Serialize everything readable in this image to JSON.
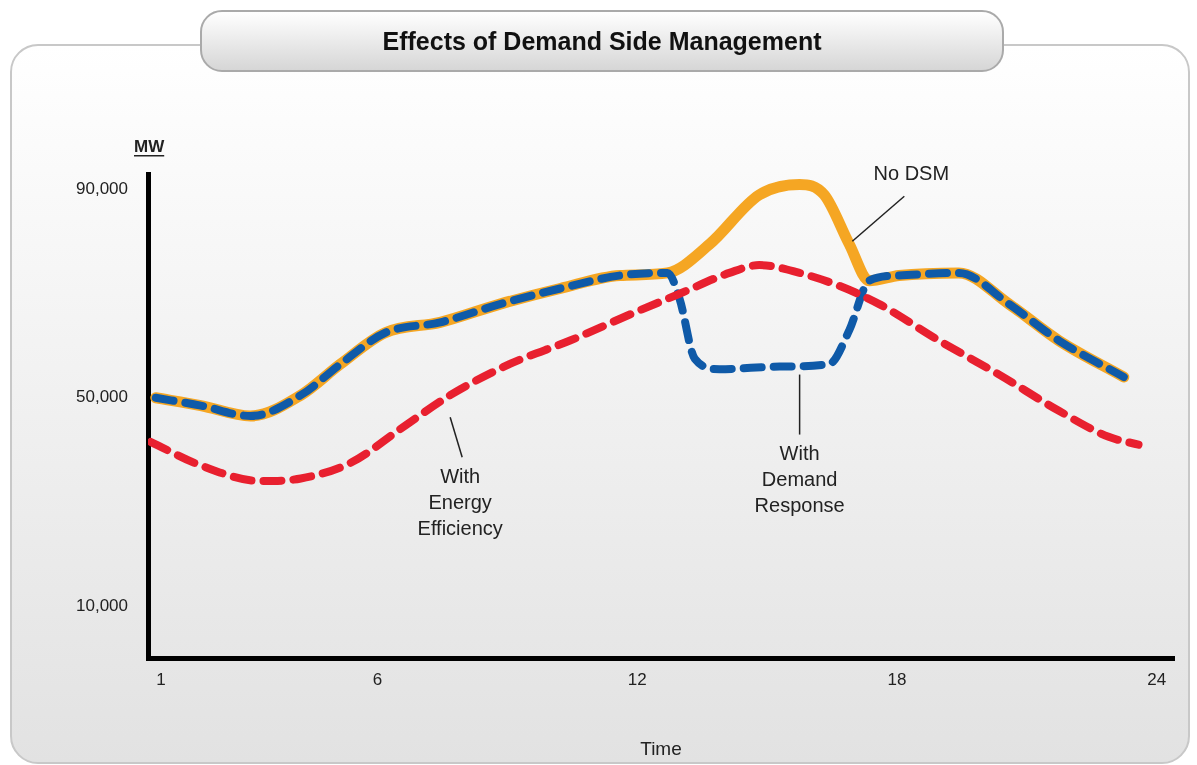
{
  "chart_data": {
    "type": "line",
    "title": "Effects of Demand Side Management",
    "xlabel": "Time",
    "ylabel": "MW",
    "xlim": [
      0.7,
      24.4
    ],
    "xticks": [
      1,
      6,
      12,
      18,
      24
    ],
    "ylim": [
      0,
      93000
    ],
    "yticks": [
      {
        "value": 10000,
        "label": "10,000"
      },
      {
        "value": 50000,
        "label": "50,000"
      },
      {
        "value": 90000,
        "label": "90,000"
      }
    ],
    "grid": false,
    "legend": false,
    "marker": "none",
    "series": [
      {
        "name": "No DSM",
        "color": "#f5a623",
        "line_style": "solid",
        "x": [
          0.88,
          1.92,
          3.07,
          4.23,
          5.15,
          6.18,
          7.45,
          8.83,
          10.22,
          11.6,
          12.7,
          13.67,
          14.82,
          15.75,
          16.32,
          16.9,
          17.36,
          18.05,
          19.43,
          20.59,
          21.74,
          23.24
        ],
        "values": [
          50000,
          48500,
          46500,
          50500,
          56500,
          62500,
          64500,
          68000,
          71000,
          73500,
          74000,
          79500,
          89000,
          91000,
          89000,
          79500,
          72500,
          73500,
          74000,
          68000,
          61000,
          54000
        ]
      },
      {
        "name": "With Demand Response",
        "color": "#0f5aa8",
        "line_style": "dashed",
        "x": [
          0.88,
          1.92,
          3.07,
          4.23,
          5.15,
          6.18,
          7.45,
          8.83,
          10.22,
          11.6,
          12.7,
          12.98,
          13.33,
          13.9,
          15.29,
          16.44,
          16.9,
          17.36,
          18.05,
          19.43,
          20.59,
          21.74,
          23.24
        ],
        "values": [
          50000,
          48500,
          46500,
          50500,
          56500,
          62500,
          64500,
          68000,
          71000,
          73500,
          74000,
          69000,
          57500,
          55500,
          56000,
          56500,
          63000,
          72500,
          73500,
          74000,
          68000,
          61000,
          54000
        ]
      },
      {
        "name": "With Energy Efficiency",
        "color": "#e8202f",
        "line_style": "dashed",
        "x": [
          0.77,
          1.92,
          3.3,
          4.23,
          5.38,
          6.53,
          7.68,
          9.06,
          10.45,
          11.83,
          12.98,
          14.13,
          14.82,
          15.75,
          16.67,
          17.59,
          18.97,
          20.35,
          21.74,
          22.89,
          23.58
        ],
        "values": [
          41500,
          37000,
          34000,
          34500,
          37500,
          44000,
          50500,
          56500,
          61000,
          66000,
          70000,
          74000,
          75500,
          74000,
          71500,
          68000,
          61000,
          54500,
          47500,
          42500,
          41000
        ]
      }
    ]
  }
}
